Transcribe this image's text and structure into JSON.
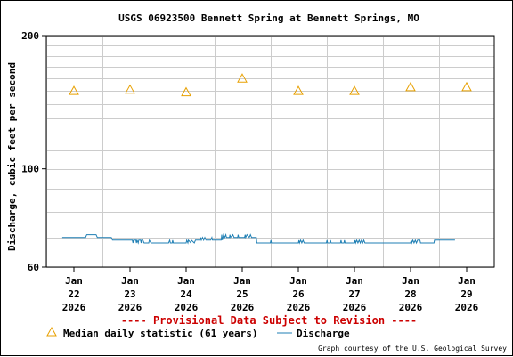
{
  "chart_data": {
    "type": "line",
    "title": "USGS 06923500 Bennett Spring at Bennett Springs, MO",
    "ylabel": "Discharge, cubic feet per second",
    "xlabel": "",
    "y_scale": "log",
    "ylim": [
      60,
      200
    ],
    "y_ticks": [
      {
        "value": 60,
        "label": "60"
      },
      {
        "value": 100,
        "label": "100"
      },
      {
        "value": 200,
        "label": "200"
      }
    ],
    "xlim": [
      "2026-01-22T00:00",
      "2026-01-29T00:00"
    ],
    "x_ticks": [
      {
        "date": "2026-01-22T00:00",
        "month": "Jan",
        "day": "22",
        "year": "2026"
      },
      {
        "date": "2026-01-23T00:00",
        "month": "Jan",
        "day": "23",
        "year": "2026"
      },
      {
        "date": "2026-01-24T00:00",
        "month": "Jan",
        "day": "24",
        "year": "2026"
      },
      {
        "date": "2026-01-25T00:00",
        "month": "Jan",
        "day": "25",
        "year": "2026"
      },
      {
        "date": "2026-01-26T00:00",
        "month": "Jan",
        "day": "26",
        "year": "2026"
      },
      {
        "date": "2026-01-27T00:00",
        "month": "Jan",
        "day": "27",
        "year": "2026"
      },
      {
        "date": "2026-01-28T00:00",
        "month": "Jan",
        "day": "28",
        "year": "2026"
      },
      {
        "date": "2026-01-29T00:00",
        "month": "Jan",
        "day": "29",
        "year": "2026"
      }
    ],
    "grid": true,
    "series": [
      {
        "name": "Discharge",
        "color": "#1f7fb4",
        "points": [
          [
            "2026-01-21T19:00",
            70
          ],
          [
            "2026-01-22T05:00",
            70
          ],
          [
            "2026-01-22T05:30",
            71
          ],
          [
            "2026-01-22T09:30",
            71
          ],
          [
            "2026-01-22T10:00",
            70
          ],
          [
            "2026-01-22T16:00",
            70
          ],
          [
            "2026-01-22T16:30",
            69
          ],
          [
            "2026-01-23T01:00",
            69
          ],
          [
            "2026-01-23T01:15",
            68
          ],
          [
            "2026-01-23T01:30",
            69
          ],
          [
            "2026-01-23T02:30",
            69
          ],
          [
            "2026-01-23T02:45",
            68
          ],
          [
            "2026-01-23T03:00",
            69
          ],
          [
            "2026-01-23T03:30",
            68
          ],
          [
            "2026-01-23T03:45",
            69
          ],
          [
            "2026-01-23T04:30",
            69
          ],
          [
            "2026-01-23T04:45",
            68
          ],
          [
            "2026-01-23T05:00",
            69
          ],
          [
            "2026-01-23T05:30",
            69
          ],
          [
            "2026-01-23T06:00",
            68
          ],
          [
            "2026-01-23T08:00",
            68
          ],
          [
            "2026-01-23T08:15",
            69
          ],
          [
            "2026-01-23T09:00",
            68
          ],
          [
            "2026-01-23T16:30",
            68
          ],
          [
            "2026-01-23T17:00",
            69
          ],
          [
            "2026-01-23T17:15",
            68
          ],
          [
            "2026-01-23T18:00",
            68
          ],
          [
            "2026-01-23T18:15",
            69
          ],
          [
            "2026-01-23T18:30",
            68
          ],
          [
            "2026-01-24T00:00",
            68
          ],
          [
            "2026-01-24T00:15",
            69
          ],
          [
            "2026-01-24T00:45",
            68
          ],
          [
            "2026-01-24T01:00",
            69
          ],
          [
            "2026-01-24T02:00",
            68
          ],
          [
            "2026-01-24T02:15",
            69
          ],
          [
            "2026-01-24T03:30",
            68
          ],
          [
            "2026-01-24T04:00",
            69
          ],
          [
            "2026-01-24T06:00",
            69
          ],
          [
            "2026-01-24T06:15",
            70
          ],
          [
            "2026-01-24T06:30",
            69
          ],
          [
            "2026-01-24T07:00",
            70
          ],
          [
            "2026-01-24T07:30",
            69
          ],
          [
            "2026-01-24T08:00",
            70
          ],
          [
            "2026-01-24T08:30",
            69
          ],
          [
            "2026-01-24T10:30",
            69
          ],
          [
            "2026-01-24T11:00",
            70
          ],
          [
            "2026-01-24T11:15",
            69
          ],
          [
            "2026-01-24T15:00",
            69
          ],
          [
            "2026-01-24T15:15",
            71
          ],
          [
            "2026-01-24T15:30",
            69
          ],
          [
            "2026-01-24T16:00",
            71
          ],
          [
            "2026-01-24T16:30",
            70
          ],
          [
            "2026-01-24T17:00",
            71
          ],
          [
            "2026-01-24T17:15",
            70
          ],
          [
            "2026-01-24T18:30",
            70
          ],
          [
            "2026-01-24T18:45",
            71
          ],
          [
            "2026-01-24T19:00",
            70
          ],
          [
            "2026-01-24T20:00",
            71
          ],
          [
            "2026-01-24T20:30",
            70
          ],
          [
            "2026-01-24T22:00",
            70
          ],
          [
            "2026-01-24T22:15",
            71
          ],
          [
            "2026-01-24T22:30",
            70
          ],
          [
            "2026-01-25T01:00",
            70
          ],
          [
            "2026-01-25T01:15",
            71
          ],
          [
            "2026-01-25T01:30",
            70
          ],
          [
            "2026-01-25T02:00",
            71
          ],
          [
            "2026-01-25T03:00",
            70
          ],
          [
            "2026-01-25T03:30",
            71
          ],
          [
            "2026-01-25T04:00",
            70
          ],
          [
            "2026-01-25T06:00",
            70
          ],
          [
            "2026-01-25T06:15",
            68
          ],
          [
            "2026-01-25T12:00",
            68
          ],
          [
            "2026-01-25T12:15",
            69
          ],
          [
            "2026-01-25T12:30",
            68
          ],
          [
            "2026-01-26T00:00",
            68
          ],
          [
            "2026-01-26T00:15",
            69
          ],
          [
            "2026-01-26T00:30",
            68
          ],
          [
            "2026-01-26T01:00",
            69
          ],
          [
            "2026-01-26T01:30",
            68
          ],
          [
            "2026-01-26T02:00",
            69
          ],
          [
            "2026-01-26T02:30",
            68
          ],
          [
            "2026-01-26T12:00",
            68
          ],
          [
            "2026-01-26T12:15",
            69
          ],
          [
            "2026-01-26T12:30",
            68
          ],
          [
            "2026-01-26T13:30",
            68
          ],
          [
            "2026-01-26T13:45",
            69
          ],
          [
            "2026-01-26T14:00",
            68
          ],
          [
            "2026-01-26T18:00",
            68
          ],
          [
            "2026-01-26T18:15",
            69
          ],
          [
            "2026-01-26T18:30",
            68
          ],
          [
            "2026-01-26T19:30",
            68
          ],
          [
            "2026-01-26T19:45",
            69
          ],
          [
            "2026-01-26T20:00",
            68
          ],
          [
            "2026-01-27T00:00",
            68
          ],
          [
            "2026-01-27T00:15",
            69
          ],
          [
            "2026-01-27T00:30",
            68
          ],
          [
            "2026-01-27T01:00",
            69
          ],
          [
            "2026-01-27T01:30",
            68
          ],
          [
            "2026-01-27T02:00",
            69
          ],
          [
            "2026-01-27T02:30",
            68
          ],
          [
            "2026-01-27T03:00",
            69
          ],
          [
            "2026-01-27T03:30",
            68
          ],
          [
            "2026-01-27T04:00",
            69
          ],
          [
            "2026-01-27T04:30",
            68
          ],
          [
            "2026-01-28T00:00",
            68
          ],
          [
            "2026-01-28T00:15",
            69
          ],
          [
            "2026-01-28T00:30",
            68
          ],
          [
            "2026-01-28T01:00",
            69
          ],
          [
            "2026-01-28T01:30",
            68
          ],
          [
            "2026-01-28T02:00",
            69
          ],
          [
            "2026-01-28T02:30",
            68
          ],
          [
            "2026-01-28T03:00",
            69
          ],
          [
            "2026-01-28T04:00",
            69
          ],
          [
            "2026-01-28T04:15",
            68
          ],
          [
            "2026-01-28T10:00",
            68
          ],
          [
            "2026-01-28T10:15",
            69
          ],
          [
            "2026-01-28T19:00",
            69
          ]
        ]
      }
    ],
    "median": {
      "name": "Median daily statistic (61 years)",
      "color": "#e8a000",
      "points": [
        [
          "2026-01-22T00:00",
          150
        ],
        [
          "2026-01-23T00:00",
          151
        ],
        [
          "2026-01-24T00:00",
          149
        ],
        [
          "2026-01-25T00:00",
          160
        ],
        [
          "2026-01-26T00:00",
          150
        ],
        [
          "2026-01-27T00:00",
          150
        ],
        [
          "2026-01-28T00:00",
          153
        ],
        [
          "2026-01-29T00:00",
          153
        ]
      ]
    },
    "notice": "---- Provisional Data Subject to Revision ----",
    "notice_color": "#cc0000",
    "legend": {
      "placement": "bottom",
      "items": [
        {
          "label": "Median daily statistic (61 years)",
          "marker": "triangle",
          "color": "#e8a000"
        },
        {
          "label": "Discharge",
          "marker": "line",
          "color": "#1f7fb4"
        }
      ]
    },
    "credit": "Graph courtesy of the U.S. Geological Survey"
  }
}
